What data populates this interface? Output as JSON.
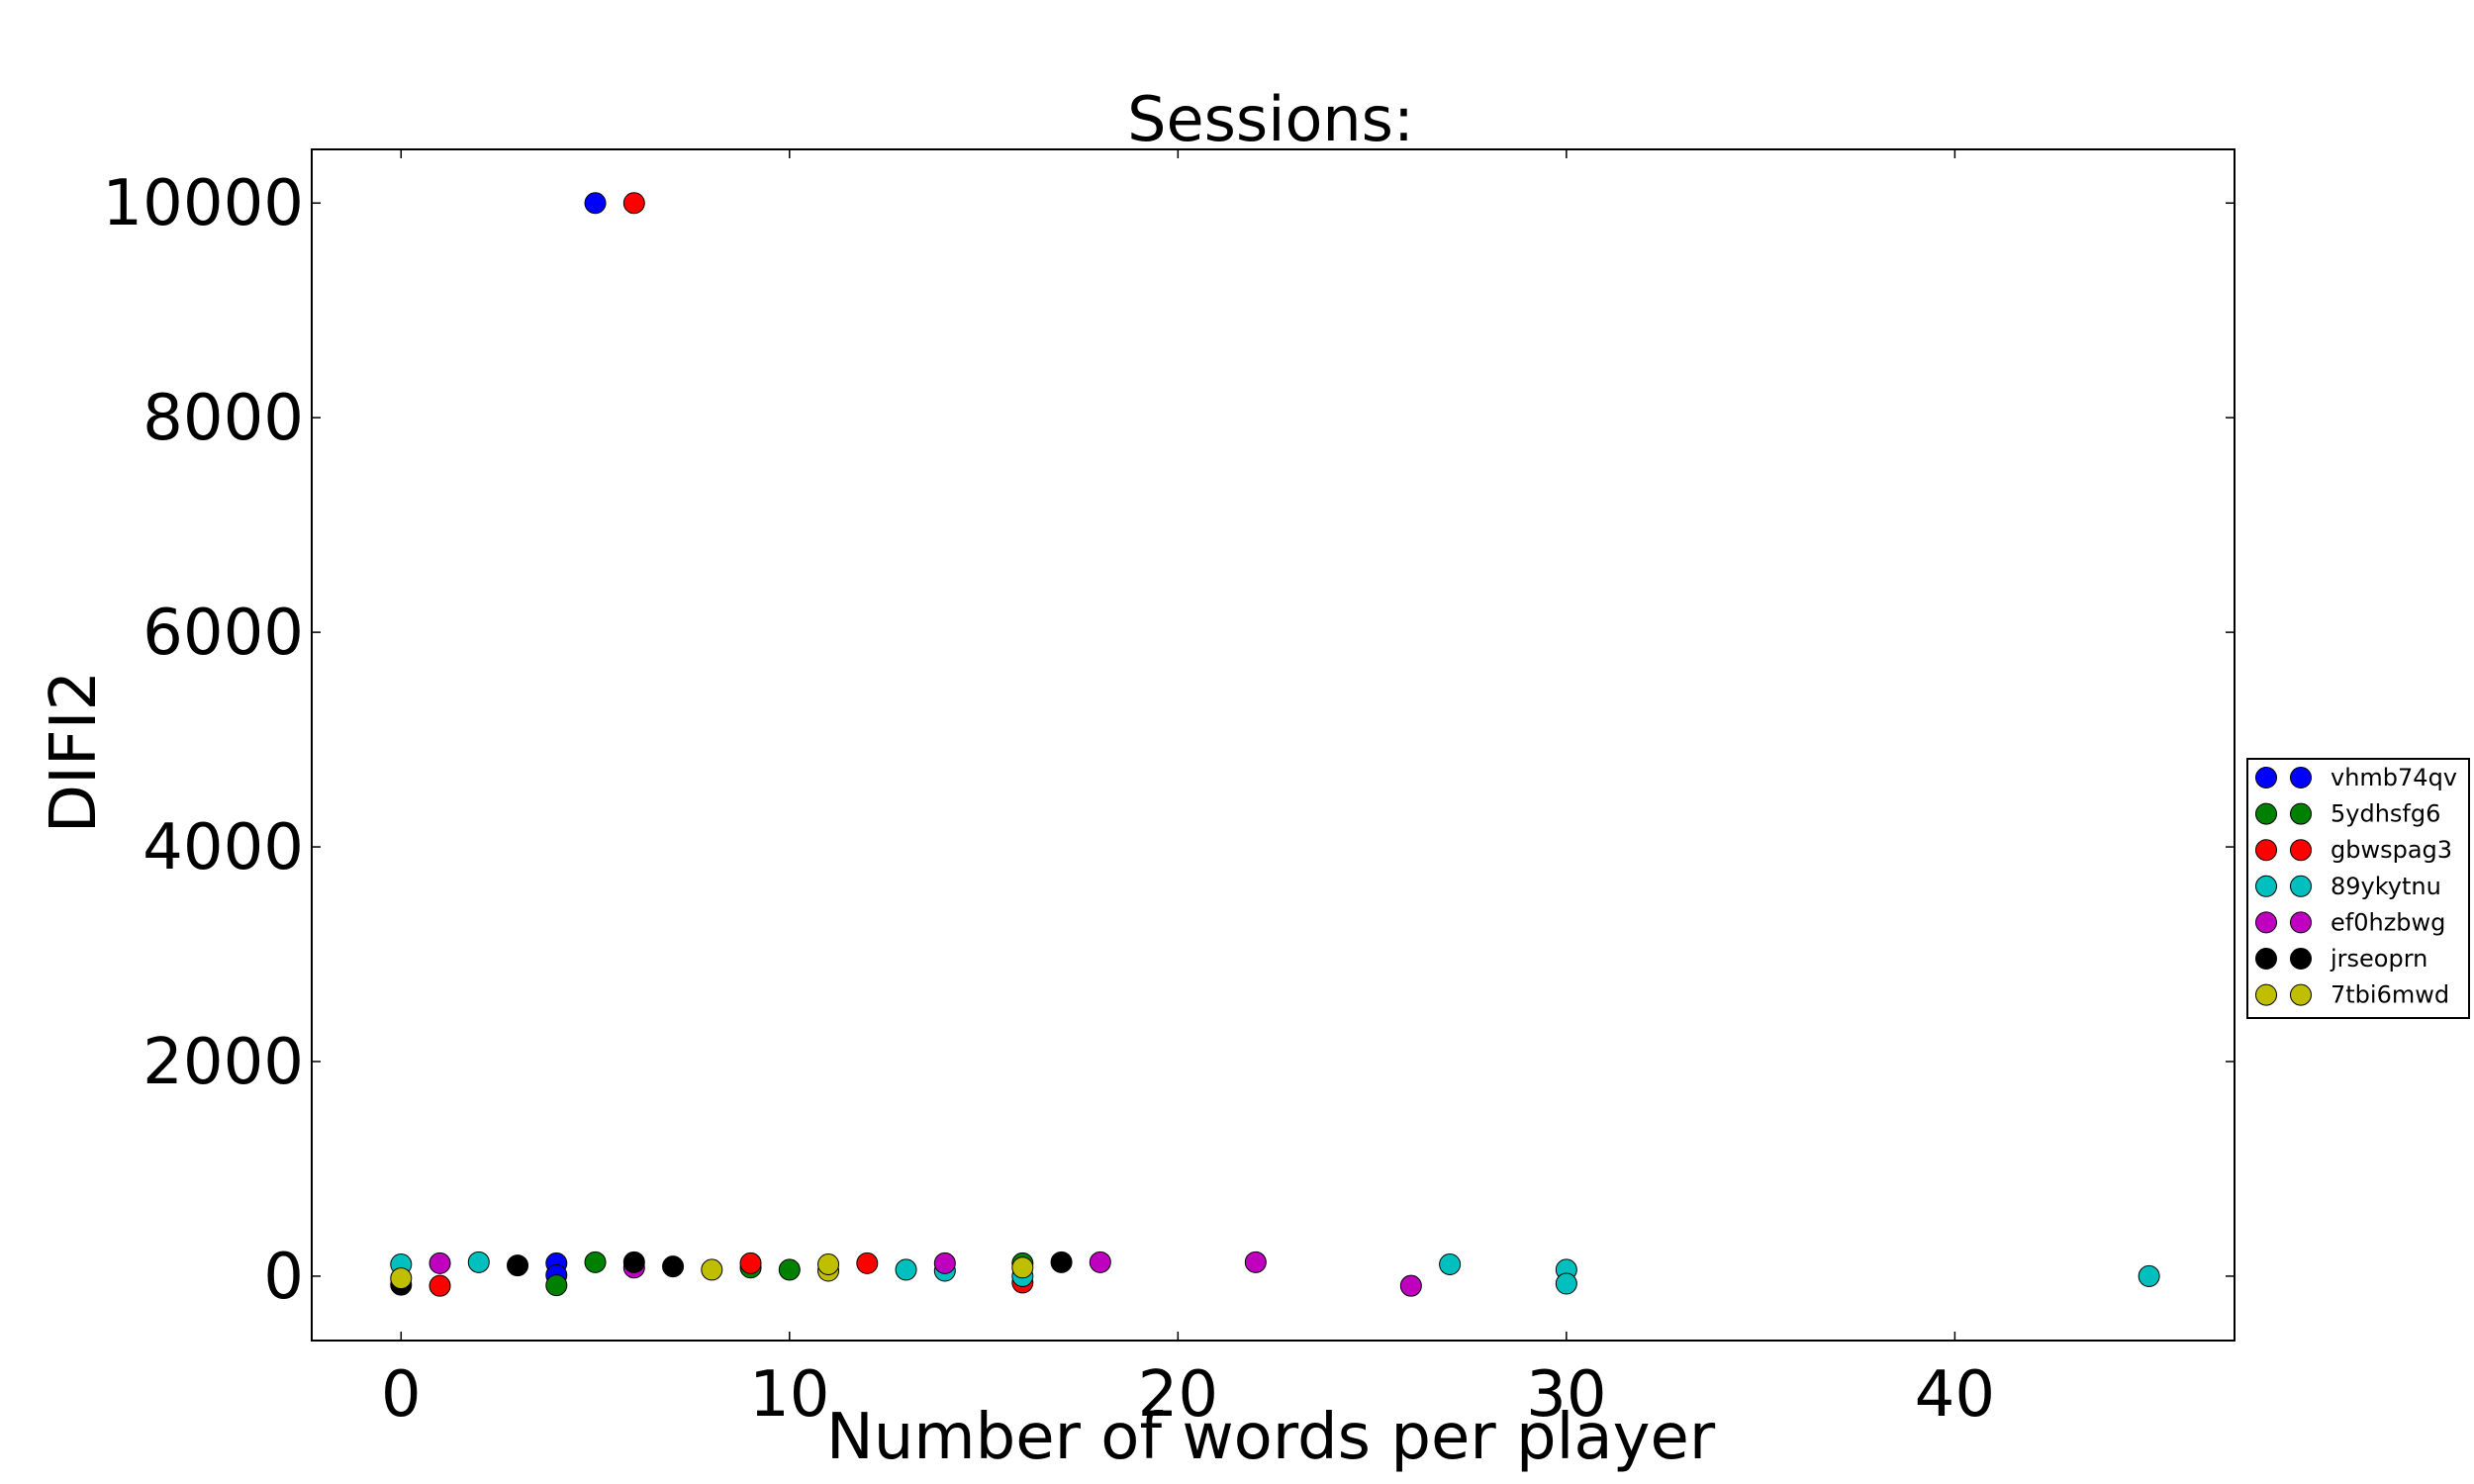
{
  "chart_data": {
    "type": "scatter",
    "title": "Sessions:",
    "xlabel": "Number of words per player",
    "ylabel": "DIFI2",
    "xlim": [
      -2.3,
      47.2
    ],
    "ylim": [
      -600,
      10500
    ],
    "xticks": [
      0,
      10,
      20,
      30,
      40
    ],
    "yticks": [
      0,
      2000,
      4000,
      6000,
      8000,
      10000
    ],
    "grid": false,
    "legend_position": "outside-right",
    "series": [
      {
        "name": "vhmb74qv",
        "color": "#0000ff",
        "points": [
          [
            4,
            120
          ],
          [
            4,
            10
          ],
          [
            5,
            10000
          ]
        ]
      },
      {
        "name": "5ydhsfg6",
        "color": "#008000",
        "points": [
          [
            4,
            -85
          ],
          [
            5,
            130
          ],
          [
            9,
            80
          ],
          [
            10,
            60
          ],
          [
            16,
            120
          ]
        ]
      },
      {
        "name": "gbwspag3",
        "color": "#ff0000",
        "points": [
          [
            1,
            -90
          ],
          [
            6,
            10000
          ],
          [
            9,
            120
          ],
          [
            12,
            120
          ],
          [
            16,
            -60
          ]
        ]
      },
      {
        "name": "89ykytnu",
        "color": "#00bfbf",
        "points": [
          [
            0,
            110
          ],
          [
            2,
            130
          ],
          [
            13,
            60
          ],
          [
            14,
            50
          ],
          [
            16,
            0
          ],
          [
            27,
            110
          ],
          [
            30,
            60
          ],
          [
            30,
            -70
          ],
          [
            45,
            0
          ]
        ]
      },
      {
        "name": "ef0hzbwg",
        "color": "#bf00bf",
        "points": [
          [
            1,
            120
          ],
          [
            6,
            80
          ],
          [
            14,
            120
          ],
          [
            18,
            130
          ],
          [
            22,
            130
          ],
          [
            26,
            -90
          ]
        ]
      },
      {
        "name": "jrseoprn",
        "color": "#000000",
        "points": [
          [
            0,
            -80
          ],
          [
            3,
            100
          ],
          [
            6,
            130
          ],
          [
            7,
            90
          ],
          [
            17,
            130
          ]
        ]
      },
      {
        "name": "7tbi6mwd",
        "color": "#bfbf00",
        "points": [
          [
            0,
            -20
          ],
          [
            8,
            60
          ],
          [
            11,
            50
          ],
          [
            11,
            110
          ],
          [
            16,
            80
          ]
        ]
      }
    ]
  }
}
